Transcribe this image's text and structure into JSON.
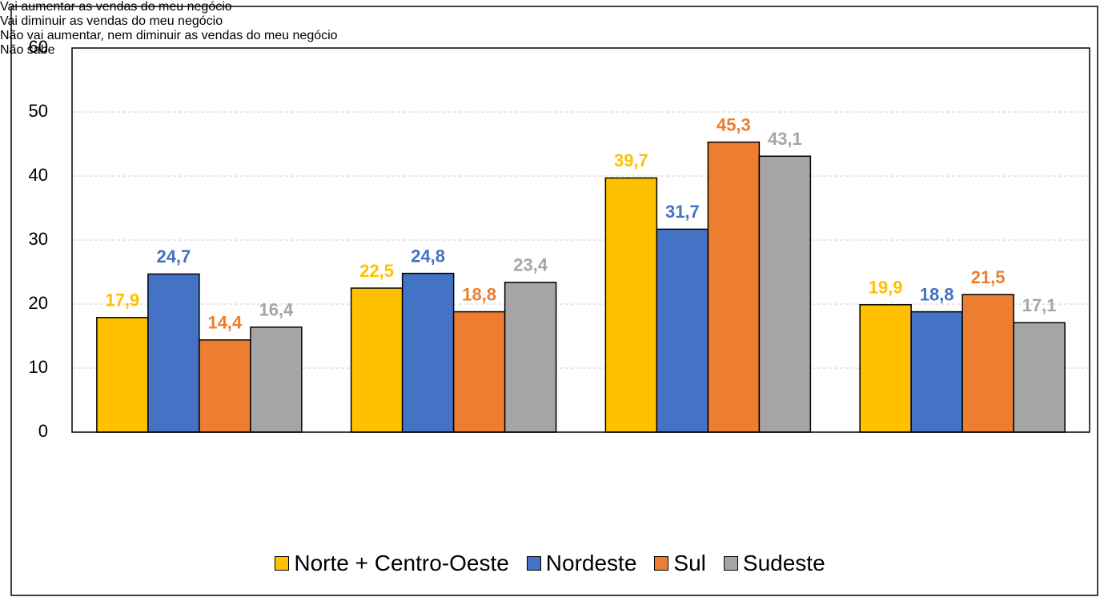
{
  "chart_data": {
    "type": "bar",
    "categories": [
      "Vai aumentar as vendas do meu negócio",
      "Vai diminuir as vendas do meu negócio",
      "Não vai aumentar, nem diminuir as vendas do meu negócio",
      "Não sabe"
    ],
    "series": [
      {
        "name": "Norte + Centro-Oeste",
        "color": "#FFC000",
        "values": [
          17.9,
          22.5,
          39.7,
          19.9
        ],
        "value_labels": [
          "17,9",
          "22,5",
          "39,7",
          "19,9"
        ]
      },
      {
        "name": "Nordeste",
        "color": "#4472C4",
        "values": [
          24.7,
          24.8,
          31.7,
          18.8
        ],
        "value_labels": [
          "24,7",
          "24,8",
          "31,7",
          "18,8"
        ]
      },
      {
        "name": "Sul",
        "color": "#ED7D31",
        "values": [
          14.4,
          18.8,
          45.3,
          21.5
        ],
        "value_labels": [
          "14,4",
          "18,8",
          "45,3",
          "21,5"
        ]
      },
      {
        "name": "Sudeste",
        "color": "#A5A5A5",
        "values": [
          16.4,
          23.4,
          43.1,
          17.1
        ],
        "value_labels": [
          "16,4",
          "23,4",
          "43,1",
          "17,1"
        ]
      }
    ],
    "ylim": [
      0,
      60
    ],
    "yticks": [
      0,
      10,
      20,
      30,
      40,
      50,
      60
    ],
    "grid": true,
    "legend": "bottom"
  }
}
